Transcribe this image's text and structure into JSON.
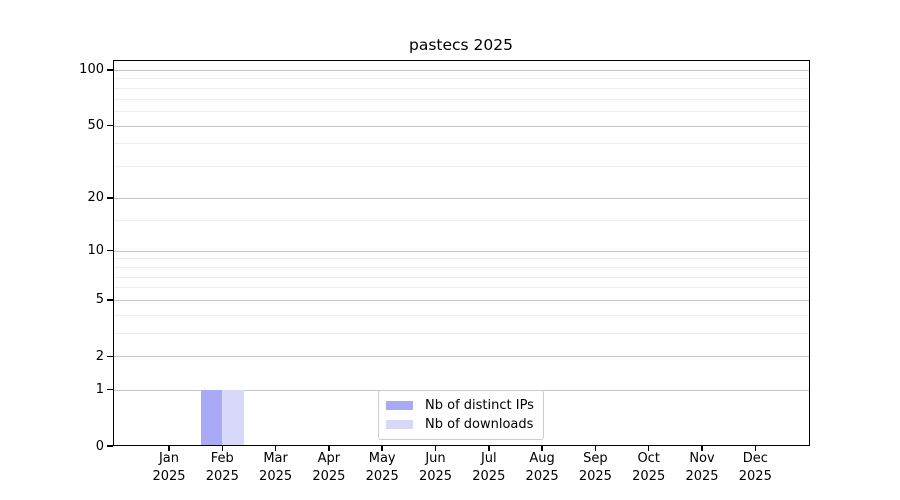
{
  "title": "pastecs 2025",
  "chart_data": {
    "type": "bar",
    "title": "pastecs 2025",
    "categories": [
      "Jan",
      "Feb",
      "Mar",
      "Apr",
      "May",
      "Jun",
      "Jul",
      "Aug",
      "Sep",
      "Oct",
      "Nov",
      "Dec"
    ],
    "category_year": "2025",
    "series": [
      {
        "name": "Nb of distinct IPs",
        "color": "#a9a9f5",
        "values": [
          0,
          1,
          0,
          0,
          0,
          0,
          0,
          0,
          0,
          0,
          0,
          0
        ]
      },
      {
        "name": "Nb of downloads",
        "color": "#d8d8f9",
        "values": [
          0,
          1,
          0,
          0,
          0,
          0,
          0,
          0,
          0,
          0,
          0,
          0
        ]
      }
    ],
    "xlabel": "",
    "ylabel": "",
    "yscale": "log1p",
    "ylim": [
      0,
      113
    ],
    "yticks_major": [
      0,
      1,
      2,
      5,
      10,
      20,
      50,
      100
    ],
    "yticks_minor": [
      3,
      4,
      6,
      7,
      8,
      9,
      15,
      30,
      40,
      60,
      70,
      80,
      90
    ],
    "grid": "horizontal",
    "legend_position": "bottom-center",
    "colors": {
      "background": "#ffffff",
      "spine": "#000000",
      "grid_major": "#c6c6c6",
      "grid_minor": "#ececec",
      "text": "#000000"
    }
  }
}
